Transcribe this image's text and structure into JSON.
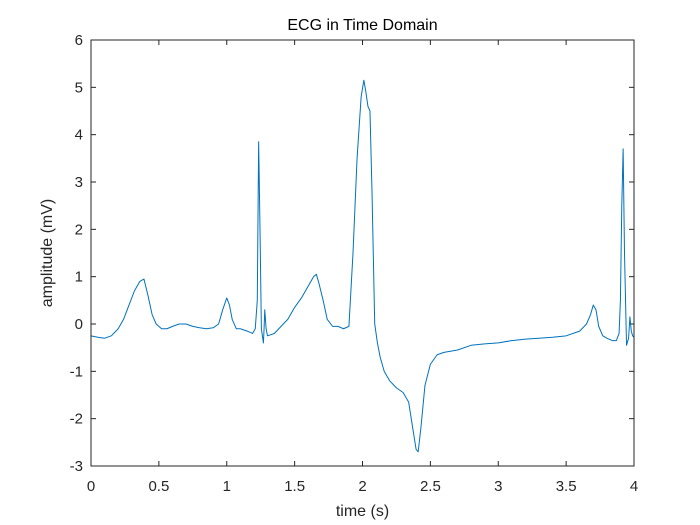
{
  "chart_data": {
    "type": "line",
    "title": "ECG in Time Domain",
    "xlabel": "time (s)",
    "ylabel": "amplitude (mV)",
    "xlim": [
      0,
      4
    ],
    "ylim": [
      -3,
      6
    ],
    "x_ticks": [
      "0",
      "0.5",
      "1",
      "1.5",
      "2",
      "2.5",
      "3",
      "3.5",
      "4"
    ],
    "y_ticks": [
      "-3",
      "-2",
      "-1",
      "0",
      "1",
      "2",
      "3",
      "4",
      "5",
      "6"
    ],
    "grid": false,
    "line_color": "#0072BD",
    "series": [
      {
        "x": [
          0,
          0.05,
          0.1,
          0.15,
          0.2,
          0.24,
          0.28,
          0.32,
          0.36,
          0.39,
          0.42,
          0.45,
          0.48,
          0.52,
          0.56,
          0.6,
          0.65,
          0.7,
          0.75,
          0.8,
          0.85,
          0.9,
          0.94,
          0.97,
          1.0,
          1.02,
          1.04,
          1.07,
          1.1,
          1.15,
          1.19,
          1.21,
          1.225,
          1.235,
          1.245,
          1.255,
          1.27,
          1.275,
          1.28,
          1.29,
          1.3,
          1.35,
          1.4,
          1.45,
          1.5,
          1.55,
          1.6,
          1.64,
          1.66,
          1.68,
          1.71,
          1.74,
          1.78,
          1.82,
          1.86,
          1.9,
          1.93,
          1.96,
          1.99,
          2.01,
          2.025,
          2.04,
          2.055,
          2.07,
          2.09,
          2.11,
          2.13,
          2.16,
          2.2,
          2.25,
          2.3,
          2.34,
          2.37,
          2.395,
          2.41,
          2.43,
          2.46,
          2.5,
          2.55,
          2.6,
          2.7,
          2.8,
          2.9,
          3.0,
          3.1,
          3.2,
          3.3,
          3.4,
          3.5,
          3.6,
          3.65,
          3.68,
          3.7,
          3.72,
          3.74,
          3.77,
          3.8,
          3.84,
          3.87,
          3.89,
          3.9,
          3.91,
          3.92,
          3.93,
          3.945,
          3.96,
          3.97,
          3.98,
          3.99,
          4.0
        ],
        "y": [
          -0.25,
          -0.28,
          -0.3,
          -0.25,
          -0.1,
          0.1,
          0.4,
          0.7,
          0.9,
          0.95,
          0.6,
          0.2,
          0.0,
          -0.1,
          -0.1,
          -0.05,
          0.0,
          0.0,
          -0.05,
          -0.08,
          -0.1,
          -0.08,
          0.0,
          0.3,
          0.55,
          0.4,
          0.1,
          -0.1,
          -0.1,
          -0.15,
          -0.2,
          -0.1,
          0.5,
          3.85,
          2.0,
          -0.1,
          -0.4,
          -0.1,
          0.3,
          -0.1,
          -0.25,
          -0.2,
          -0.05,
          0.1,
          0.35,
          0.55,
          0.8,
          1.0,
          1.05,
          0.85,
          0.5,
          0.1,
          -0.05,
          -0.05,
          -0.1,
          -0.05,
          1.5,
          3.5,
          4.8,
          5.15,
          4.9,
          4.6,
          4.5,
          2.8,
          0.0,
          -0.4,
          -0.7,
          -1.0,
          -1.2,
          -1.35,
          -1.45,
          -1.65,
          -2.2,
          -2.65,
          -2.7,
          -2.2,
          -1.3,
          -0.85,
          -0.65,
          -0.6,
          -0.55,
          -0.45,
          -0.42,
          -0.4,
          -0.35,
          -0.32,
          -0.3,
          -0.28,
          -0.25,
          -0.15,
          0.0,
          0.2,
          0.4,
          0.3,
          -0.05,
          -0.25,
          -0.3,
          -0.35,
          -0.35,
          -0.2,
          0.5,
          2.5,
          3.7,
          1.5,
          -0.45,
          -0.3,
          0.15,
          -0.15,
          -0.25,
          -0.28
        ]
      }
    ]
  }
}
